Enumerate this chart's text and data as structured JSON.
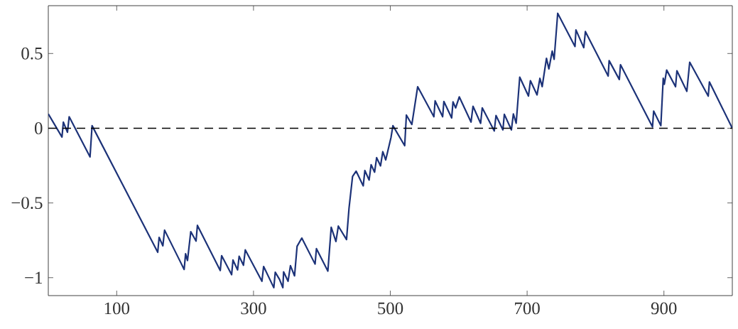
{
  "chart_data": {
    "type": "line",
    "x": [
      0,
      20,
      22,
      28,
      30.5,
      61,
      64,
      160,
      162,
      167.5,
      170,
      198.6,
      200.7,
      203.5,
      208.3,
      216,
      218,
      251.4,
      253.4,
      268,
      270,
      276.7,
      279,
      285.3,
      288,
      312.3,
      314.8,
      329.7,
      331.8,
      338,
      342.9,
      344,
      350.5,
      354,
      360,
      363.7,
      370.6,
      390,
      392,
      408.7,
      413.6,
      420.5,
      424,
      436,
      439.6,
      444.8,
      450,
      460.4,
      462.8,
      469,
      471.9,
      477,
      480,
      485.7,
      489,
      493.3,
      501,
      503.8,
      521,
      523.5,
      531.5,
      540,
      563.7,
      565.5,
      576.5,
      578.3,
      589.7,
      591.7,
      595.5,
      600.8,
      618,
      620.9,
      632,
      634.4,
      652,
      654.5,
      664.6,
      666.7,
      677,
      679.9,
      684,
      689.2,
      702,
      704.8,
      714.5,
      718.7,
      722,
      728.3,
      731.8,
      736.7,
      739.5,
      744.7,
      770,
      771.4,
      782.8,
      785.2,
      818.5,
      819.9,
      834.8,
      836.5,
      883.3,
      885,
      895.5,
      899,
      900.6,
      904,
      917,
      919,
      933.5,
      937.7,
      964.8,
      966.5,
      1000
    ],
    "series": [
      {
        "color": "#1c3278",
        "line_style": "solid",
        "values": [
          0.096,
          -0.059,
          0.041,
          -0.027,
          0.077,
          -0.192,
          0.017,
          -0.83,
          -0.73,
          -0.787,
          -0.682,
          -0.945,
          -0.84,
          -0.885,
          -0.692,
          -0.755,
          -0.65,
          -0.952,
          -0.853,
          -0.98,
          -0.882,
          -0.948,
          -0.857,
          -0.917,
          -0.814,
          -1.024,
          -0.925,
          -1.067,
          -0.964,
          -1.011,
          -1.067,
          -0.961,
          -1.024,
          -0.92,
          -0.988,
          -0.79,
          -0.735,
          -0.909,
          -0.806,
          -0.956,
          -0.663,
          -0.758,
          -0.655,
          -0.745,
          -0.537,
          -0.323,
          -0.287,
          -0.386,
          -0.283,
          -0.347,
          -0.244,
          -0.294,
          -0.197,
          -0.252,
          -0.157,
          -0.212,
          -0.062,
          0.017,
          -0.117,
          0.088,
          0.025,
          0.278,
          0.077,
          0.183,
          0.077,
          0.179,
          0.069,
          0.176,
          0.136,
          0.21,
          0.041,
          0.147,
          0.033,
          0.136,
          -0.018,
          0.085,
          -0.011,
          0.093,
          -0.011,
          0.096,
          0.033,
          0.342,
          0.215,
          0.318,
          0.223,
          0.334,
          0.278,
          0.468,
          0.397,
          0.516,
          0.461,
          0.769,
          0.547,
          0.658,
          0.539,
          0.647,
          0.349,
          0.452,
          0.326,
          0.425,
          0.009,
          0.115,
          0.017,
          0.334,
          0.294,
          0.389,
          0.278,
          0.385,
          0.247,
          0.442,
          0.215,
          0.31,
          0
        ]
      }
    ],
    "xlim": [
      0,
      1000
    ],
    "ylim": [
      -1.12,
      0.82
    ],
    "xticks": [
      100,
      300,
      500,
      700,
      900
    ],
    "yticks": [
      {
        "value": -1,
        "label": "−1"
      },
      {
        "value": -0.5,
        "label": "−0.5"
      },
      0,
      0.5
    ],
    "ref_lines": [
      {
        "axis": "y",
        "value": 0,
        "color": "#000000",
        "line_style": "dashed"
      }
    ]
  }
}
